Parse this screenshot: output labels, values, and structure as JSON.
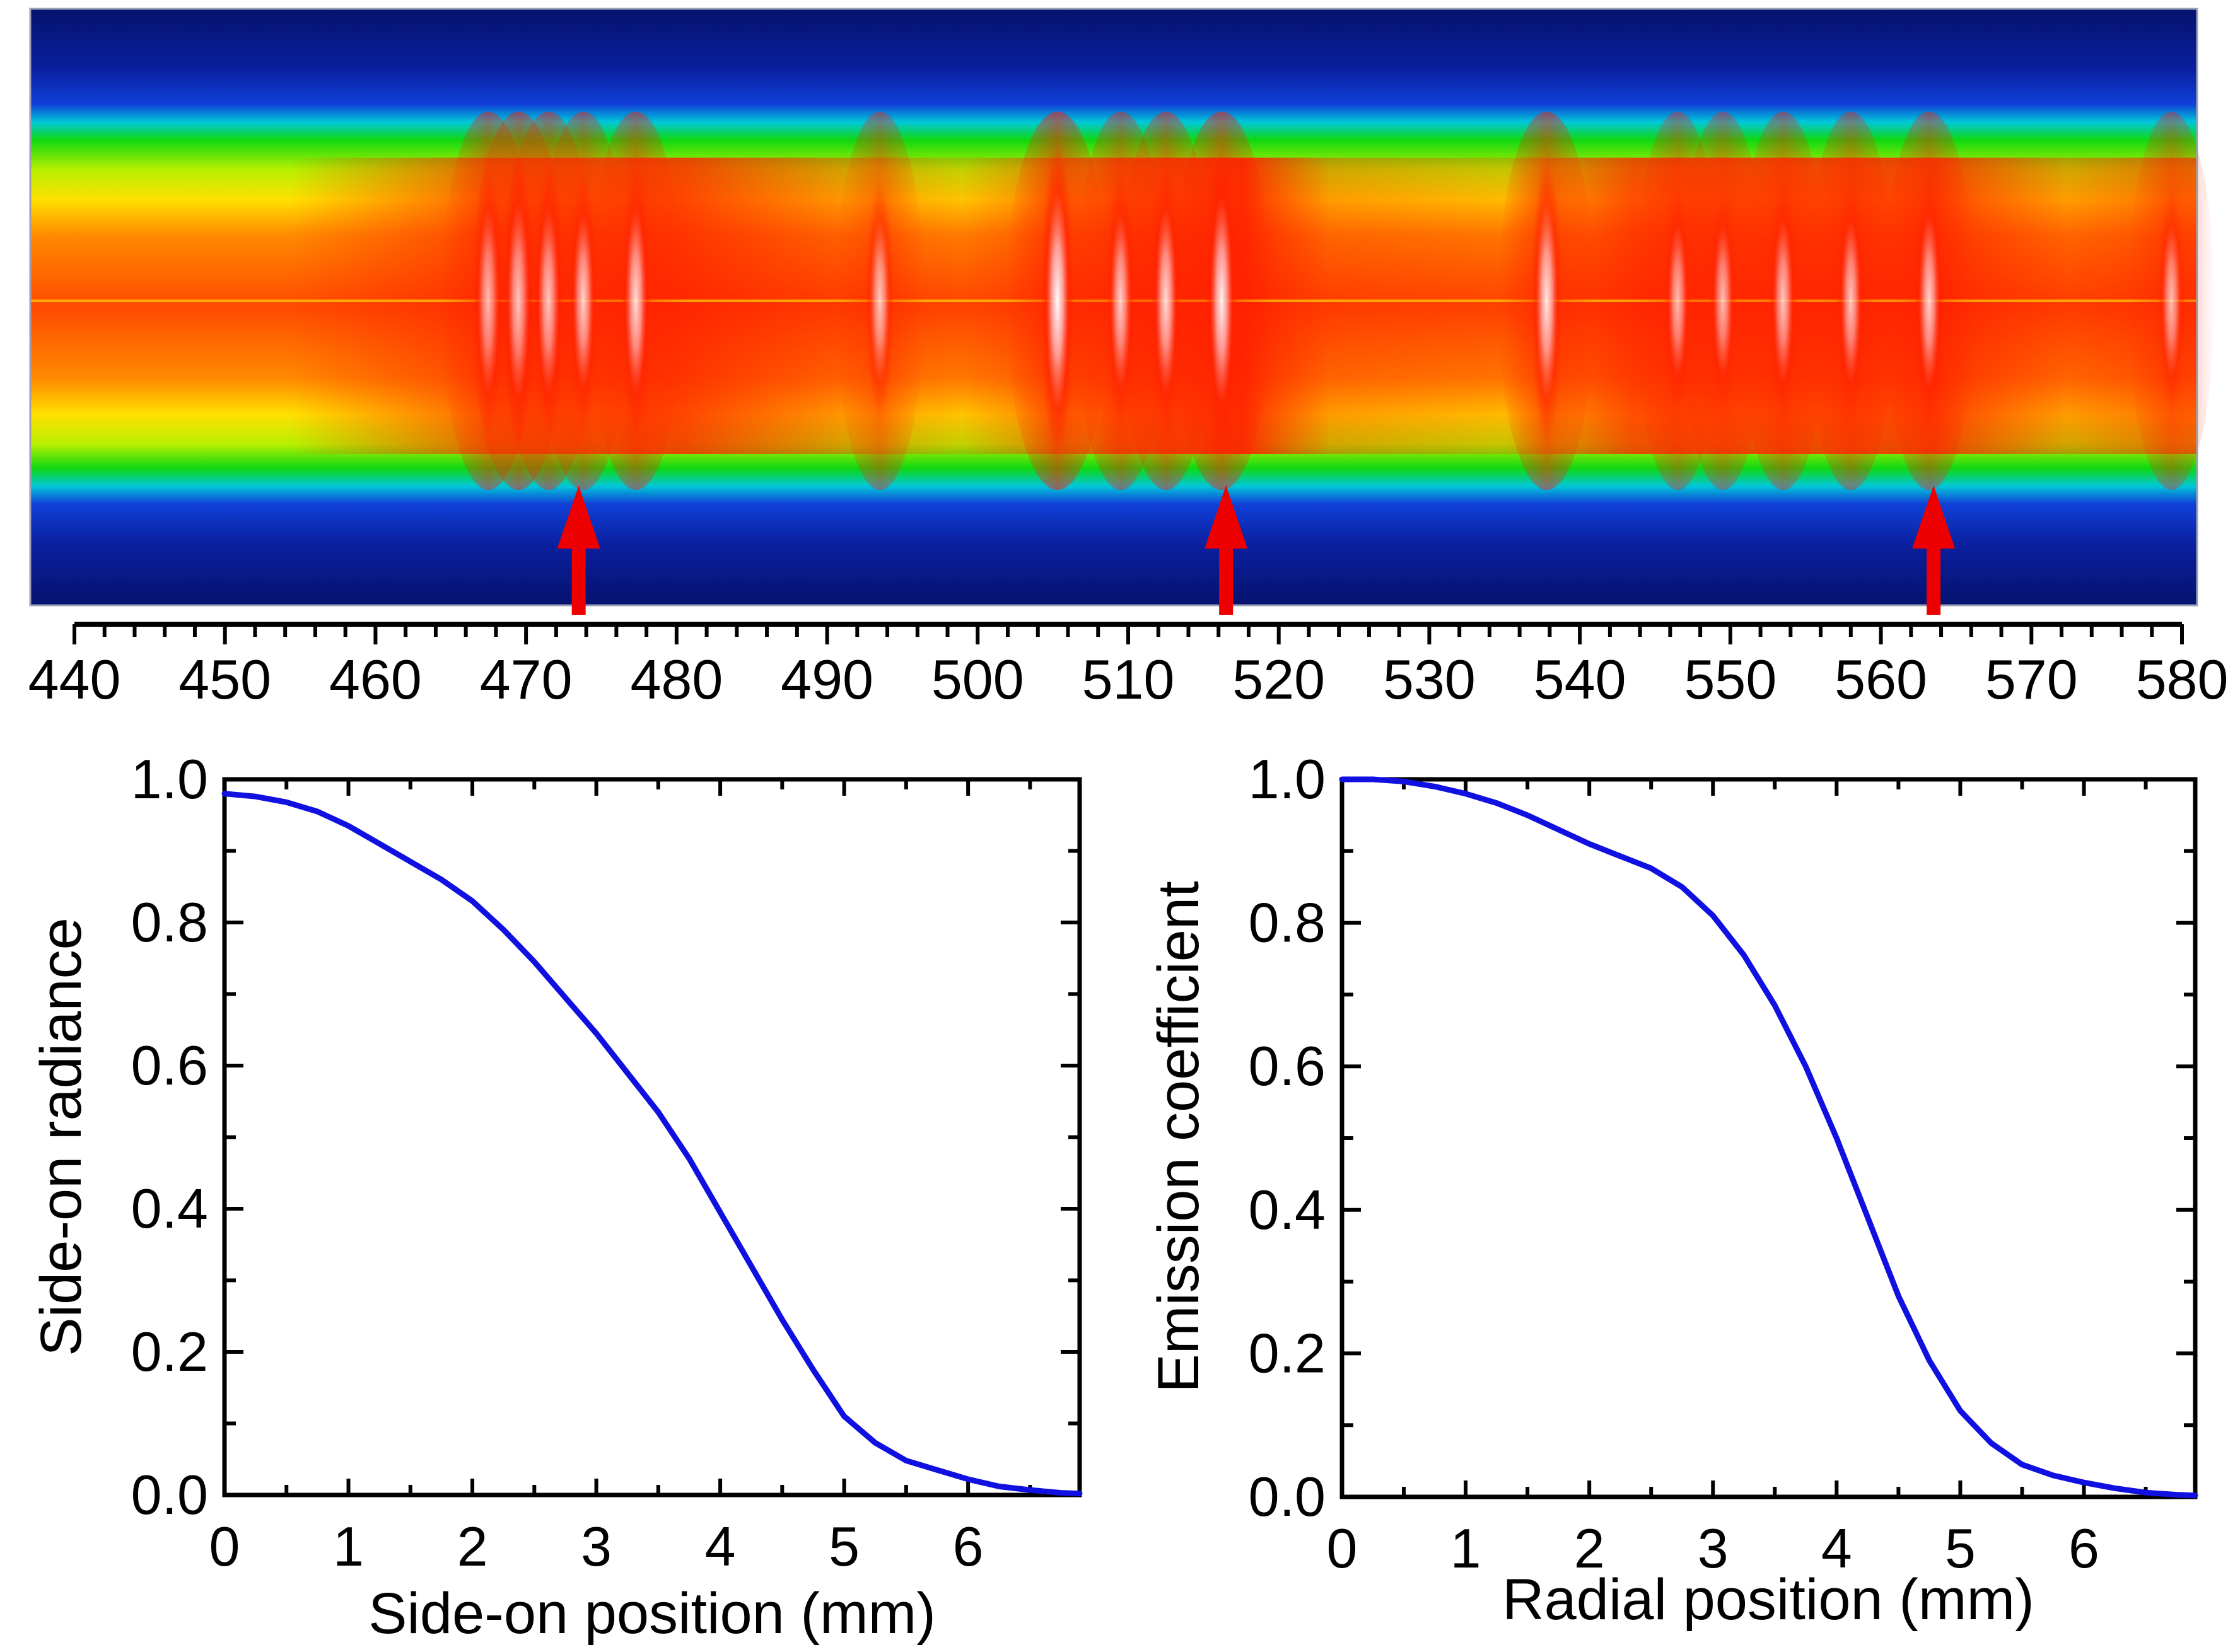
{
  "colors": {
    "curve": "#1010e0",
    "arrow": "#ee0000",
    "spectrum_low": "#06126e",
    "spectrum_mid": "#10d810",
    "spectrum_high": "#ff1e00",
    "spectrum_peak": "#ffffff"
  },
  "chart_data": [
    {
      "type": "heatmap",
      "title": "",
      "xlim": [
        440,
        580
      ],
      "x_tick_labels": [
        "440",
        "450",
        "460",
        "470",
        "480",
        "490",
        "500",
        "510",
        "520",
        "530",
        "540",
        "550",
        "560",
        "570",
        "580"
      ],
      "xlabel": "",
      "ylabel": "",
      "arrow_positions": [
        473.5,
        516.5,
        563.5
      ],
      "bright_features": [
        {
          "x": 467.5,
          "intensity": 0.85
        },
        {
          "x": 469.5,
          "intensity": 0.9
        },
        {
          "x": 471.5,
          "intensity": 0.85
        },
        {
          "x": 473.8,
          "intensity": 0.8
        },
        {
          "x": 477.3,
          "intensity": 0.85
        },
        {
          "x": 493.5,
          "intensity": 0.75
        },
        {
          "x": 505.3,
          "intensity": 1.0
        },
        {
          "x": 509.5,
          "intensity": 0.8
        },
        {
          "x": 512.5,
          "intensity": 0.85
        },
        {
          "x": 516.2,
          "intensity": 0.95
        },
        {
          "x": 537.8,
          "intensity": 0.9
        },
        {
          "x": 546.5,
          "intensity": 0.7
        },
        {
          "x": 549.5,
          "intensity": 0.7
        },
        {
          "x": 553.5,
          "intensity": 0.75
        },
        {
          "x": 558.0,
          "intensity": 0.75
        },
        {
          "x": 563.2,
          "intensity": 0.8
        },
        {
          "x": 579.3,
          "intensity": 0.7
        }
      ]
    },
    {
      "type": "line",
      "title": "",
      "xlabel": "Side-on position (mm)",
      "ylabel": "Side-on radiance",
      "xlim": [
        0,
        6.9
      ],
      "ylim": [
        0,
        1.0
      ],
      "x_tick_labels": [
        "0",
        "1",
        "2",
        "3",
        "4",
        "5",
        "6"
      ],
      "y_tick_labels": [
        "0.0",
        "0.2",
        "0.4",
        "0.6",
        "0.8",
        "1.0"
      ],
      "series": [
        {
          "name": "Side-on radiance",
          "x": [
            0,
            0.25,
            0.5,
            0.75,
            1.0,
            1.25,
            1.5,
            1.75,
            2.0,
            2.25,
            2.5,
            2.75,
            3.0,
            3.25,
            3.5,
            3.75,
            4.0,
            4.25,
            4.5,
            4.75,
            5.0,
            5.25,
            5.5,
            5.75,
            6.0,
            6.25,
            6.5,
            6.75,
            6.9
          ],
          "y": [
            0.98,
            0.976,
            0.968,
            0.955,
            0.935,
            0.91,
            0.885,
            0.86,
            0.83,
            0.79,
            0.745,
            0.695,
            0.645,
            0.59,
            0.535,
            0.47,
            0.395,
            0.32,
            0.245,
            0.175,
            0.11,
            0.073,
            0.048,
            0.035,
            0.022,
            0.012,
            0.007,
            0.003,
            0.002
          ]
        }
      ]
    },
    {
      "type": "line",
      "title": "",
      "xlabel": "Radial position (mm)",
      "ylabel": "Emission coefficient",
      "xlim": [
        0,
        6.9
      ],
      "ylim": [
        0,
        1.0
      ],
      "x_tick_labels": [
        "0",
        "1",
        "2",
        "3",
        "4",
        "5",
        "6"
      ],
      "y_tick_labels": [
        "0.0",
        "0.2",
        "0.4",
        "0.6",
        "0.8",
        "1.0"
      ],
      "series": [
        {
          "name": "Emission coefficient",
          "x": [
            0,
            0.25,
            0.5,
            0.75,
            1.0,
            1.25,
            1.5,
            1.75,
            2.0,
            2.25,
            2.5,
            2.75,
            3.0,
            3.25,
            3.5,
            3.75,
            4.0,
            4.25,
            4.5,
            4.75,
            5.0,
            5.25,
            5.5,
            5.75,
            6.0,
            6.25,
            6.5,
            6.75,
            6.9
          ],
          "y": [
            1.0,
            1.0,
            0.997,
            0.99,
            0.98,
            0.967,
            0.95,
            0.93,
            0.91,
            0.893,
            0.876,
            0.85,
            0.81,
            0.755,
            0.685,
            0.6,
            0.5,
            0.39,
            0.28,
            0.19,
            0.12,
            0.075,
            0.045,
            0.03,
            0.02,
            0.012,
            0.006,
            0.003,
            0.002
          ]
        }
      ]
    }
  ]
}
